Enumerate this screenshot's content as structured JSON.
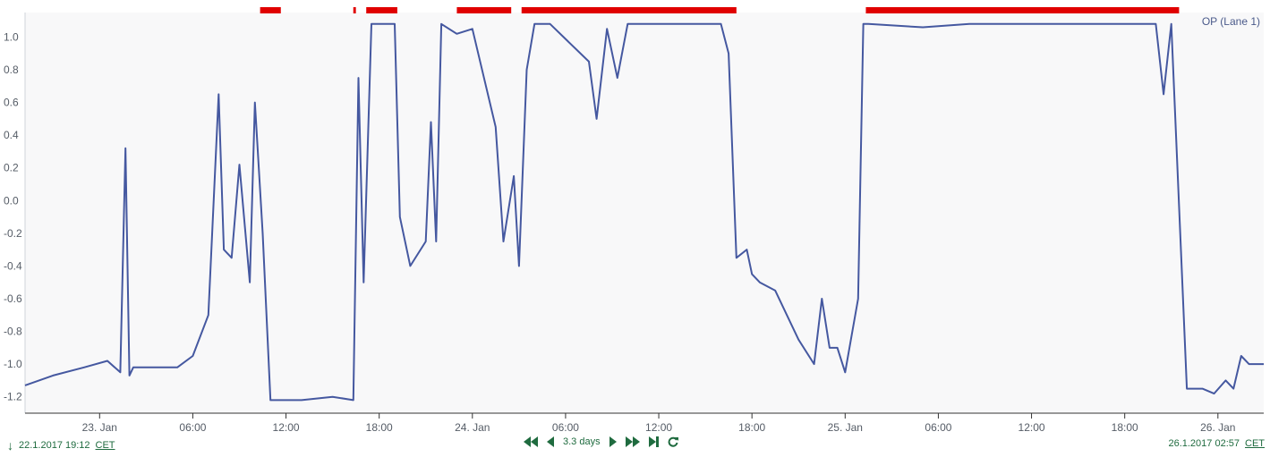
{
  "colors": {
    "line": "#4558a0",
    "plot_bg": "#f8f8f9",
    "event_marks": "#e00000",
    "axis": "#333333",
    "ui_green": "#1f6b3f"
  },
  "footer": {
    "start_time": "22.1.2017 19:12",
    "end_time": "26.1.2017 02:57",
    "timezone": "CET",
    "range_label": "3.3 days",
    "icons": [
      "download-arrow-icon",
      "fast-backward-icon",
      "step-backward-icon",
      "step-forward-icon",
      "fast-forward-icon",
      "skip-end-icon",
      "refresh-icon"
    ]
  },
  "chart_data": {
    "type": "line",
    "series_label": "OP (Lane 1)",
    "x_range": [
      "2017-01-22 19:12",
      "2017-01-26 02:57"
    ],
    "ylim": [
      -1.3,
      1.15
    ],
    "grid": false,
    "legend": "top-right",
    "x_ticks": [
      "23. Jan",
      "06:00",
      "12:00",
      "18:00",
      "24. Jan",
      "06:00",
      "12:00",
      "18:00",
      "25. Jan",
      "06:00",
      "12:00",
      "18:00",
      "26. Jan"
    ],
    "y_ticks": [
      "1.0",
      "0.8",
      "0.6",
      "0.4",
      "0.2",
      "0.0",
      "-0.2",
      "-0.4",
      "-0.6",
      "-0.8",
      "-1.0",
      "-1.2"
    ],
    "series": [
      {
        "x": [
          "2017-01-22 19:12",
          "2017-01-22 21:00",
          "2017-01-22 23:00",
          "2017-01-23 00:30",
          "2017-01-23 01:20",
          "2017-01-23 01:40",
          "2017-01-23 01:55",
          "2017-01-23 02:10",
          "2017-01-23 03:00",
          "2017-01-23 05:00",
          "2017-01-23 06:00",
          "2017-01-23 07:00",
          "2017-01-23 07:40",
          "2017-01-23 08:00",
          "2017-01-23 08:30",
          "2017-01-23 09:00",
          "2017-01-23 09:40",
          "2017-01-23 10:00",
          "2017-01-23 10:30",
          "2017-01-23 11:00",
          "2017-01-23 13:00",
          "2017-01-23 15:00",
          "2017-01-23 16:20",
          "2017-01-23 16:40",
          "2017-01-23 17:00",
          "2017-01-23 17:30",
          "2017-01-23 19:00",
          "2017-01-23 19:20",
          "2017-01-23 20:00",
          "2017-01-23 21:00",
          "2017-01-23 21:20",
          "2017-01-23 21:40",
          "2017-01-23 22:00",
          "2017-01-23 23:00",
          "2017-01-24 00:00",
          "2017-01-24 01:30",
          "2017-01-24 02:00",
          "2017-01-24 02:40",
          "2017-01-24 03:00",
          "2017-01-24 03:30",
          "2017-01-24 04:00",
          "2017-01-24 05:00",
          "2017-01-24 07:30",
          "2017-01-24 08:00",
          "2017-01-24 08:40",
          "2017-01-24 09:20",
          "2017-01-24 10:00",
          "2017-01-24 12:00",
          "2017-01-24 14:00",
          "2017-01-24 16:00",
          "2017-01-24 16:30",
          "2017-01-24 17:00",
          "2017-01-24 17:40",
          "2017-01-24 18:00",
          "2017-01-24 18:30",
          "2017-01-24 19:30",
          "2017-01-24 21:00",
          "2017-01-24 22:00",
          "2017-01-24 22:30",
          "2017-01-24 23:00",
          "2017-01-24 23:30",
          "2017-01-25 00:00",
          "2017-01-25 00:50",
          "2017-01-25 01:10",
          "2017-01-25 01:30",
          "2017-01-25 05:00",
          "2017-01-25 08:00",
          "2017-01-25 12:00",
          "2017-01-25 18:00",
          "2017-01-25 20:00",
          "2017-01-25 20:30",
          "2017-01-25 21:00",
          "2017-01-25 22:00",
          "2017-01-25 23:00",
          "2017-01-25 23:45",
          "2017-01-26 00:30",
          "2017-01-26 01:00",
          "2017-01-26 01:30",
          "2017-01-26 02:00",
          "2017-01-26 02:57"
        ],
        "y": [
          -1.13,
          -1.07,
          -1.02,
          -0.98,
          -1.05,
          0.32,
          -1.07,
          -1.02,
          -1.02,
          -1.02,
          -0.95,
          -0.7,
          0.65,
          -0.3,
          -0.35,
          0.22,
          -0.5,
          0.6,
          -0.2,
          -1.22,
          -1.22,
          -1.2,
          -1.22,
          0.75,
          -0.5,
          1.08,
          1.08,
          -0.1,
          -0.4,
          -0.25,
          0.48,
          -0.25,
          1.08,
          1.02,
          1.05,
          0.45,
          -0.25,
          0.15,
          -0.4,
          0.8,
          1.08,
          1.08,
          0.85,
          0.5,
          1.05,
          0.75,
          1.08,
          1.08,
          1.08,
          1.08,
          0.9,
          -0.35,
          -0.3,
          -0.45,
          -0.5,
          -0.55,
          -0.85,
          -1.0,
          -0.6,
          -0.9,
          -0.9,
          -1.05,
          -0.6,
          1.08,
          1.08,
          1.06,
          1.08,
          1.08,
          1.08,
          1.08,
          0.65,
          1.08,
          -1.15,
          -1.15,
          -1.18,
          -1.1,
          -1.15,
          -0.95,
          -1.0,
          -1.0
        ]
      }
    ],
    "event_marks_ranges": [
      [
        "2017-01-23 10:20",
        "2017-01-23 11:40"
      ],
      [
        "2017-01-23 16:20",
        "2017-01-23 16:30"
      ],
      [
        "2017-01-23 17:10",
        "2017-01-23 19:10"
      ],
      [
        "2017-01-23 23:00",
        "2017-01-24 02:30"
      ],
      [
        "2017-01-24 03:10",
        "2017-01-24 17:00"
      ],
      [
        "2017-01-25 01:20",
        "2017-01-25 21:30"
      ]
    ]
  }
}
